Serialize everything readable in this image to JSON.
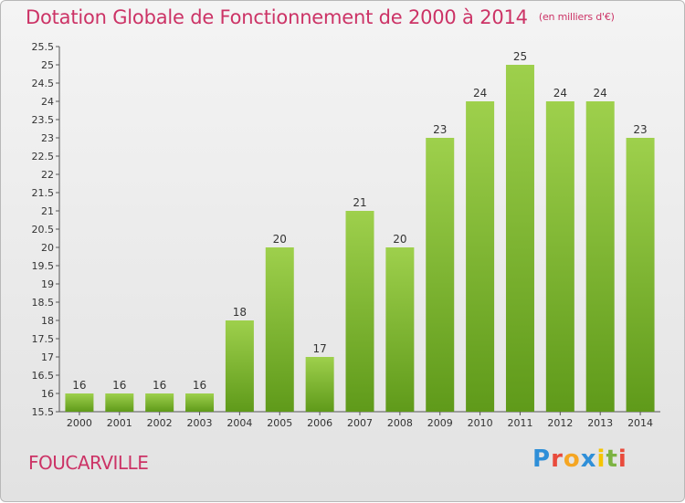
{
  "header": {
    "title": "Dotation Globale de Fonctionnement de 2000 à 2014",
    "subtitle": "(en milliers d'€)"
  },
  "footer": {
    "place_name": "FOUCARVILLE"
  },
  "logo": {
    "text": "Proxiti",
    "letter_colors": [
      "#2f8fd8",
      "#e94b3c",
      "#f5a623",
      "#2f8fd8",
      "#f5c400",
      "#7cb342",
      "#e94b3c"
    ]
  },
  "colors": {
    "accent": "#cc3366",
    "bar_light": "#9ed04c",
    "bar_dark": "#5f9a1a"
  },
  "chart_data": {
    "type": "bar",
    "title": "Dotation Globale de Fonctionnement de 2000 à 2014",
    "subtitle": "(en milliers d'€)",
    "categories": [
      "2000",
      "2001",
      "2002",
      "2003",
      "2004",
      "2005",
      "2006",
      "2007",
      "2008",
      "2009",
      "2010",
      "2011",
      "2012",
      "2013",
      "2014"
    ],
    "values": [
      16,
      16,
      16,
      16,
      18,
      20,
      17,
      21,
      20,
      23,
      24,
      25,
      24,
      24,
      23
    ],
    "data_labels": [
      "16",
      "16",
      "16",
      "16",
      "18",
      "20",
      "17",
      "21",
      "20",
      "23",
      "24",
      "25",
      "24",
      "24",
      "23"
    ],
    "ylim": [
      15.5,
      25.5
    ],
    "yticks": [
      "15.5",
      "16",
      "16.5",
      "17",
      "17.5",
      "18",
      "18.5",
      "19",
      "19.5",
      "20",
      "20.5",
      "21",
      "21.5",
      "22",
      "22.5",
      "23",
      "23.5",
      "24",
      "24.5",
      "25",
      "25.5"
    ],
    "grid": false,
    "xlabel": "",
    "ylabel": ""
  }
}
